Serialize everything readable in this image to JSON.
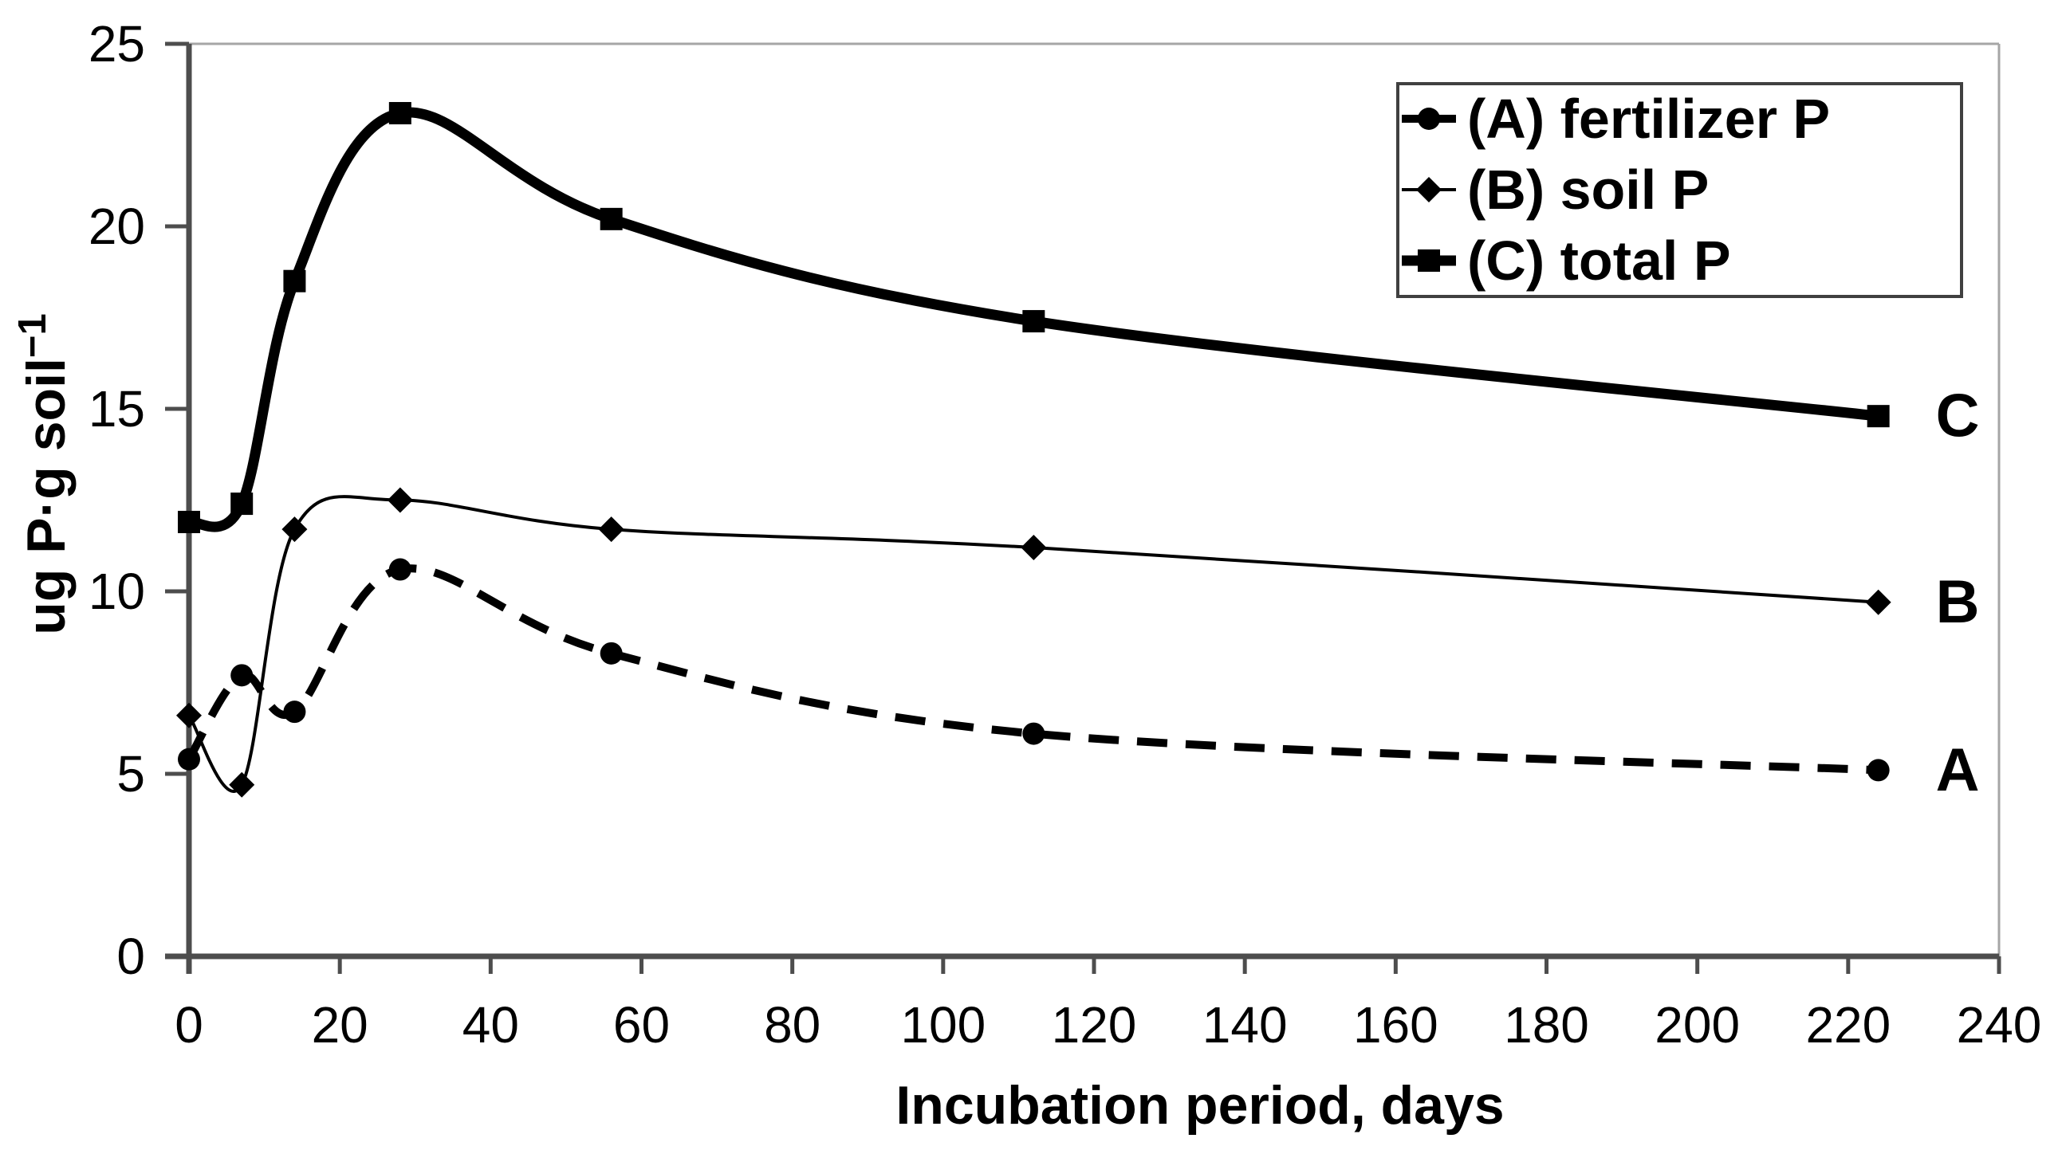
{
  "figure": {
    "kind": "scientific line chart",
    "background": "#ffffff"
  },
  "chart_data": {
    "type": "line",
    "title": "",
    "xlabel": "Incubation period, days",
    "ylabel": "ug P·g soil−1",
    "ylabel_base": "ug P·g soil",
    "ylabel_superscript": "−1",
    "xlim": [
      0,
      240
    ],
    "ylim": [
      0,
      25
    ],
    "xticks": [
      0,
      20,
      40,
      60,
      80,
      100,
      120,
      140,
      160,
      180,
      200,
      220,
      240
    ],
    "yticks": [
      0,
      5,
      10,
      15,
      20,
      25
    ],
    "grid": false,
    "x": [
      0,
      7,
      14,
      28,
      56,
      112,
      224
    ],
    "series": [
      {
        "name": "(A) fertilizer P",
        "letter": "A",
        "marker": "circle",
        "line_style": "dashed",
        "values": [
          5.4,
          7.7,
          6.7,
          10.6,
          8.3,
          6.1,
          5.1
        ]
      },
      {
        "name": "(B) soil P",
        "letter": "B",
        "marker": "diamond",
        "line_style": "solid-thin",
        "values": [
          6.6,
          4.7,
          11.7,
          12.5,
          11.7,
          11.2,
          9.7
        ]
      },
      {
        "name": "(C) total P",
        "letter": "C",
        "marker": "square",
        "line_style": "solid-thick",
        "values": [
          11.9,
          12.4,
          18.5,
          23.1,
          20.2,
          17.4,
          14.8
        ]
      }
    ],
    "legend": {
      "position": "top-right",
      "entries": [
        "(A) fertilizer P",
        "(B) soil P",
        "(C) total P"
      ]
    }
  },
  "colors": {
    "series": "#000000",
    "axis": "#4d4d4d",
    "frame": "#a6a6a6",
    "legend_border": "#404040",
    "text": "#000000",
    "background": "#ffffff"
  }
}
